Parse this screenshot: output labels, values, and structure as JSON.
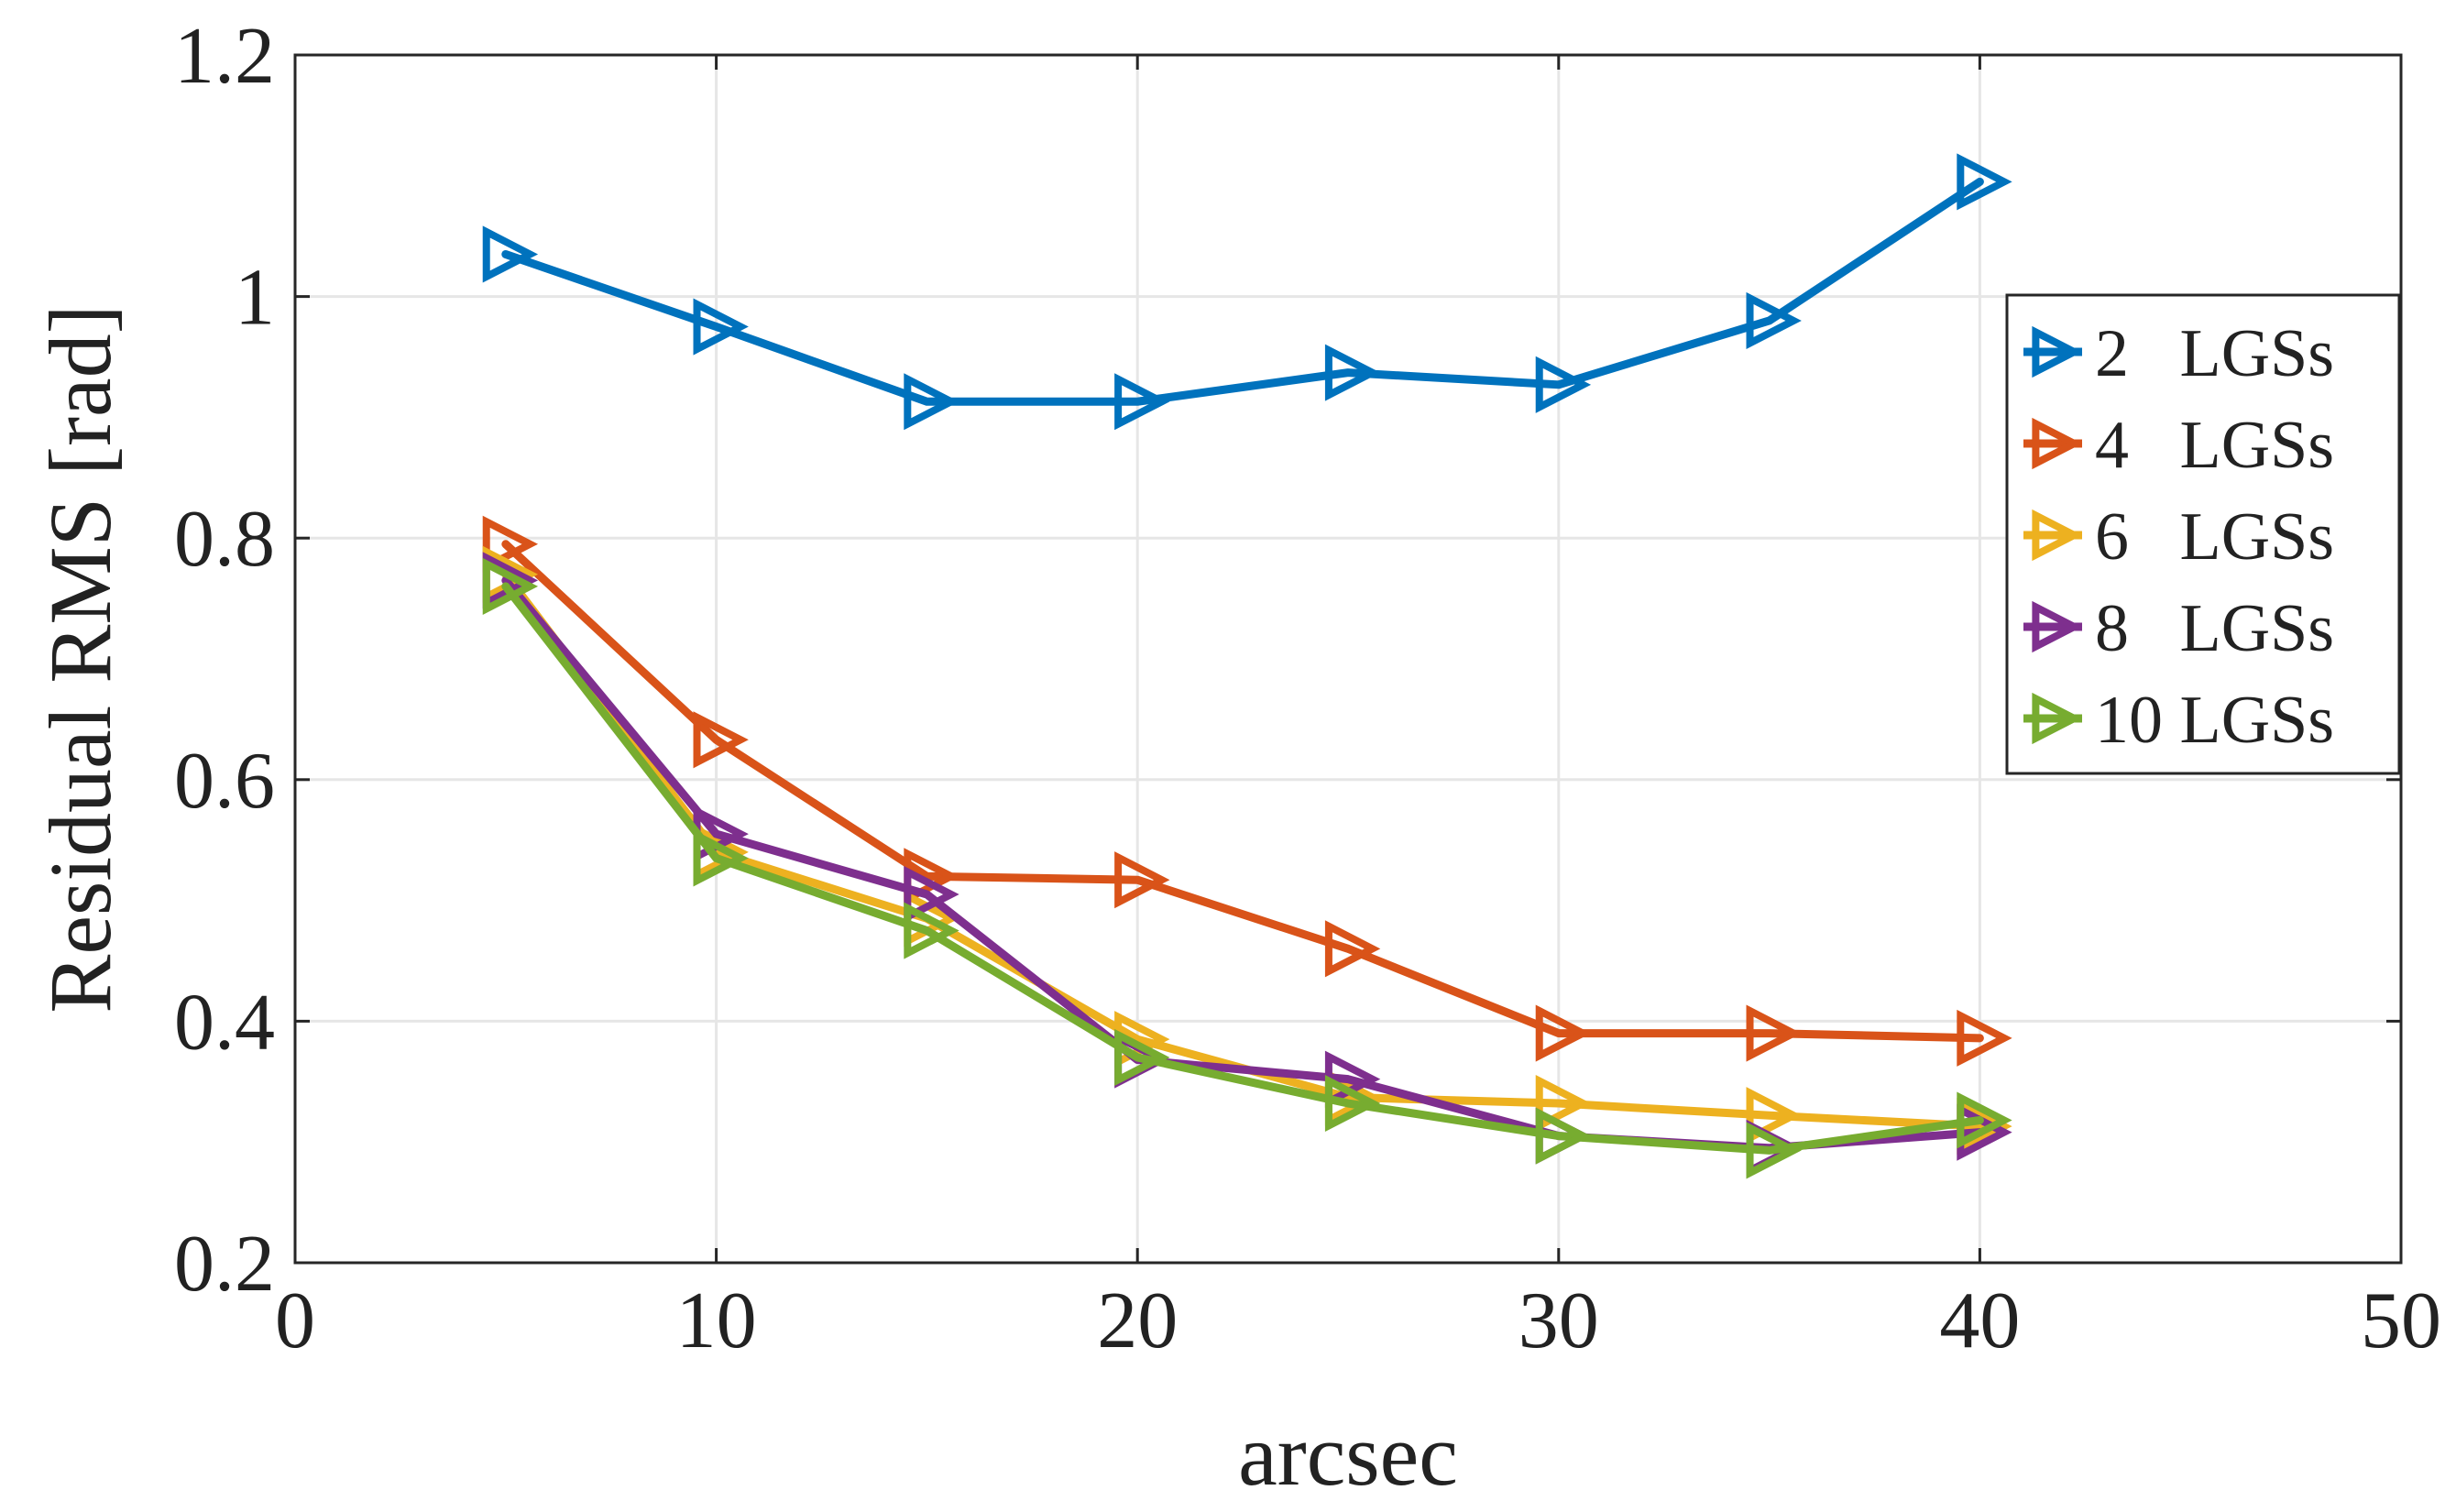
{
  "chart_data": {
    "type": "line",
    "title": "",
    "xlabel": "arcsec",
    "ylabel": "Residual RMS [rad]",
    "xlim": [
      0,
      50
    ],
    "ylim": [
      0.2,
      1.2
    ],
    "xticks": [
      0,
      10,
      20,
      30,
      40,
      50
    ],
    "yticks": [
      0.2,
      0.4,
      0.6,
      0.8,
      1,
      1.2
    ],
    "xtick_labels": [
      "0",
      "10",
      "20",
      "30",
      "40",
      "50"
    ],
    "ytick_labels": [
      "0.2",
      "0.4",
      "0.6",
      "0.8",
      "1",
      "1.2"
    ],
    "grid": true,
    "legend_position": "right",
    "marker": "right-pointing-triangle",
    "x": [
      5,
      10,
      15,
      20,
      25,
      30,
      35,
      40
    ],
    "series": [
      {
        "name": "2   LGSs",
        "color": "#0072bd",
        "values": [
          1.035,
          0.975,
          0.913,
          0.913,
          0.937,
          0.927,
          0.98,
          1.095
        ]
      },
      {
        "name": "4   LGSs",
        "color": "#d95319",
        "values": [
          0.795,
          0.633,
          0.52,
          0.517,
          0.46,
          0.39,
          0.39,
          0.386
        ]
      },
      {
        "name": "6   LGSs",
        "color": "#edb120",
        "values": [
          0.77,
          0.54,
          0.485,
          0.385,
          0.337,
          0.332,
          0.322,
          0.313
        ]
      },
      {
        "name": "8   LGSs",
        "color": "#7e2f8e",
        "values": [
          0.765,
          0.555,
          0.505,
          0.368,
          0.352,
          0.305,
          0.295,
          0.308
        ]
      },
      {
        "name": "10 LGSs",
        "color": "#77ac30",
        "values": [
          0.76,
          0.535,
          0.475,
          0.37,
          0.332,
          0.305,
          0.293,
          0.318
        ]
      }
    ]
  }
}
